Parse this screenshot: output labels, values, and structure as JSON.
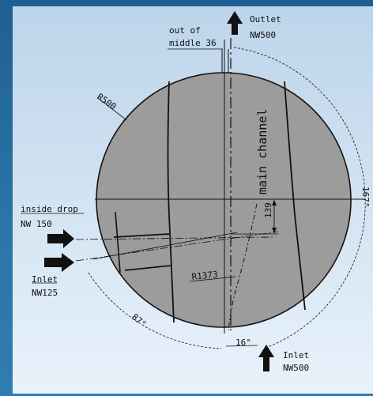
{
  "diagram": {
    "outlet_top": {
      "line1": "Outlet",
      "line2": "NW500"
    },
    "out_of_middle": {
      "line1": "out of",
      "line2": "middle 36"
    },
    "radius_label": "R500",
    "main_channel": "main channel",
    "inside_drop": {
      "line1": "inside drop",
      "line2": "NW 150"
    },
    "inlet_left": {
      "line1": "Inlet",
      "line2": "NW125"
    },
    "offset_dim": "139",
    "channel_radius": "R1373",
    "angle_left": "87°",
    "angle_bottom": "16°",
    "angle_right": "167°",
    "inlet_bottom": {
      "line1": "Inlet",
      "line2": "NW500"
    },
    "colors": {
      "disc": "#9c9c9c",
      "outline": "#111111",
      "background_top": "#bcd4ea",
      "background_bottom": "#e9f2fb",
      "border": "#2a74a8"
    }
  }
}
